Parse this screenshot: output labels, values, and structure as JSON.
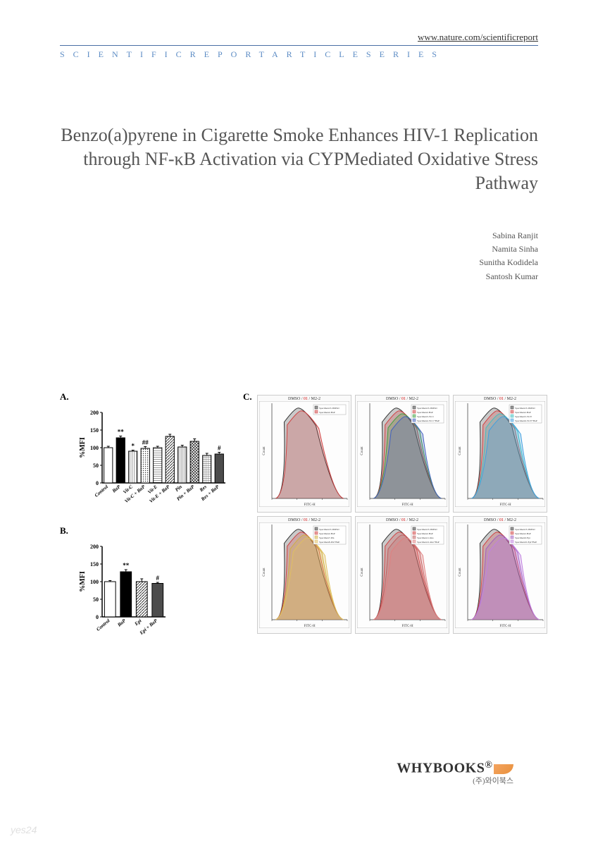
{
  "header": {
    "link": "www.nature.com/scientificreport",
    "series": "SCIENTIFICREPORTARTICLESERIES"
  },
  "title": "Benzo(a)pyrene in Cigarette Smoke Enhances HIV-1 Replication through NF-κB Activation via CYPMediated Oxidative Stress Pathway",
  "authors": [
    "Sabina Ranjit",
    "Namita Sinha",
    "Sunitha Kodidela",
    "Santosh Kumar"
  ],
  "figure": {
    "panelA": {
      "label": "A.",
      "ylabel": "%MFI",
      "ylim": [
        0,
        200
      ],
      "yticks": [
        0,
        50,
        100,
        150,
        200
      ],
      "categories": [
        "Control",
        "BaP",
        "Vit-C",
        "Vit-C + BaP",
        "Vit-E",
        "Vit-E + BaP",
        "Pin",
        "Pin + BaP",
        "Res",
        "Res + BaP"
      ],
      "values": [
        100,
        128,
        90,
        98,
        100,
        132,
        102,
        118,
        78,
        82
      ],
      "errors": [
        4,
        5,
        3,
        5,
        4,
        6,
        5,
        7,
        6,
        5
      ],
      "fills": [
        "#ffffff",
        "#000000",
        "hatch-vert",
        "hatch-dots",
        "hatch-horiz",
        "hatch-diag",
        "hatch-vert2",
        "hatch-cross",
        "hatch-grid",
        "hatch-dense"
      ],
      "significance": [
        "",
        "**",
        "*",
        "##",
        "",
        "",
        "",
        "",
        "",
        "#"
      ],
      "bar_color": "#333333",
      "axis_color": "#000000",
      "label_fontsize": 8
    },
    "panelB": {
      "label": "B.",
      "ylabel": "%MFI",
      "ylim": [
        0,
        200
      ],
      "yticks": [
        0,
        50,
        100,
        150,
        200
      ],
      "categories": [
        "Control",
        "BaP",
        "Epi",
        "Epi + BaP"
      ],
      "values": [
        100,
        128,
        100,
        95
      ],
      "errors": [
        3,
        6,
        8,
        3
      ],
      "fills": [
        "#ffffff",
        "#000000",
        "hatch-diag",
        "hatch-dense"
      ],
      "significance": [
        "",
        "**",
        "",
        "#"
      ],
      "bar_color": "#333333",
      "axis_color": "#000000",
      "label_fontsize": 8
    },
    "panelC": {
      "label": "C.",
      "grid": {
        "rows": 2,
        "cols": 3
      },
      "cell_title": "DMSO / 01 / M2-2",
      "xlabel": "FITC-H",
      "ylabel": "Count",
      "xrange": [
        1000,
        100000
      ],
      "cells": [
        {
          "legend": [
            "Specimen13-DMSO",
            "Specimen2-BaP"
          ],
          "colors": [
            "#333333",
            "#d04040"
          ]
        },
        {
          "legend": [
            "Specimen13-DMSO",
            "Specimen2-BaP",
            "Specimen3-Vit C",
            "Specimen4-Vit C+BaP"
          ],
          "colors": [
            "#333333",
            "#d04040",
            "#40a040",
            "#4060c0"
          ]
        },
        {
          "legend": [
            "Specimen13-DMSO",
            "Specimen2-BaP",
            "Specimen5-Vit E",
            "Specimen6-Vit E+BaP"
          ],
          "colors": [
            "#333333",
            "#d04040",
            "#40c0c0",
            "#40a0e0"
          ]
        },
        {
          "legend": [
            "Specimen13-DMSO",
            "Specimen2-BaP",
            "Specimen7-Pin",
            "Specimen8-Pin+BaP"
          ],
          "colors": [
            "#333333",
            "#d04040",
            "#d0b040",
            "#e0c060"
          ]
        },
        {
          "legend": [
            "Specimen13-DMSO",
            "Specimen2-BaP",
            "Specimen11-Res",
            "Specimen12-Res+BaP"
          ],
          "colors": [
            "#333333",
            "#d04040",
            "#c06060",
            "#e08080"
          ]
        },
        {
          "legend": [
            "Specimen13-DMSO",
            "Specimen2-BaP",
            "Specimen9-Epi",
            "Specimen10-Epi+BaP"
          ],
          "colors": [
            "#333333",
            "#d04040",
            "#a060c0",
            "#c080e0"
          ]
        }
      ]
    }
  },
  "logo": {
    "main": "WHYBOOKS",
    "reg": "®",
    "sub": "(주)와이북스"
  },
  "watermark": "yes24"
}
